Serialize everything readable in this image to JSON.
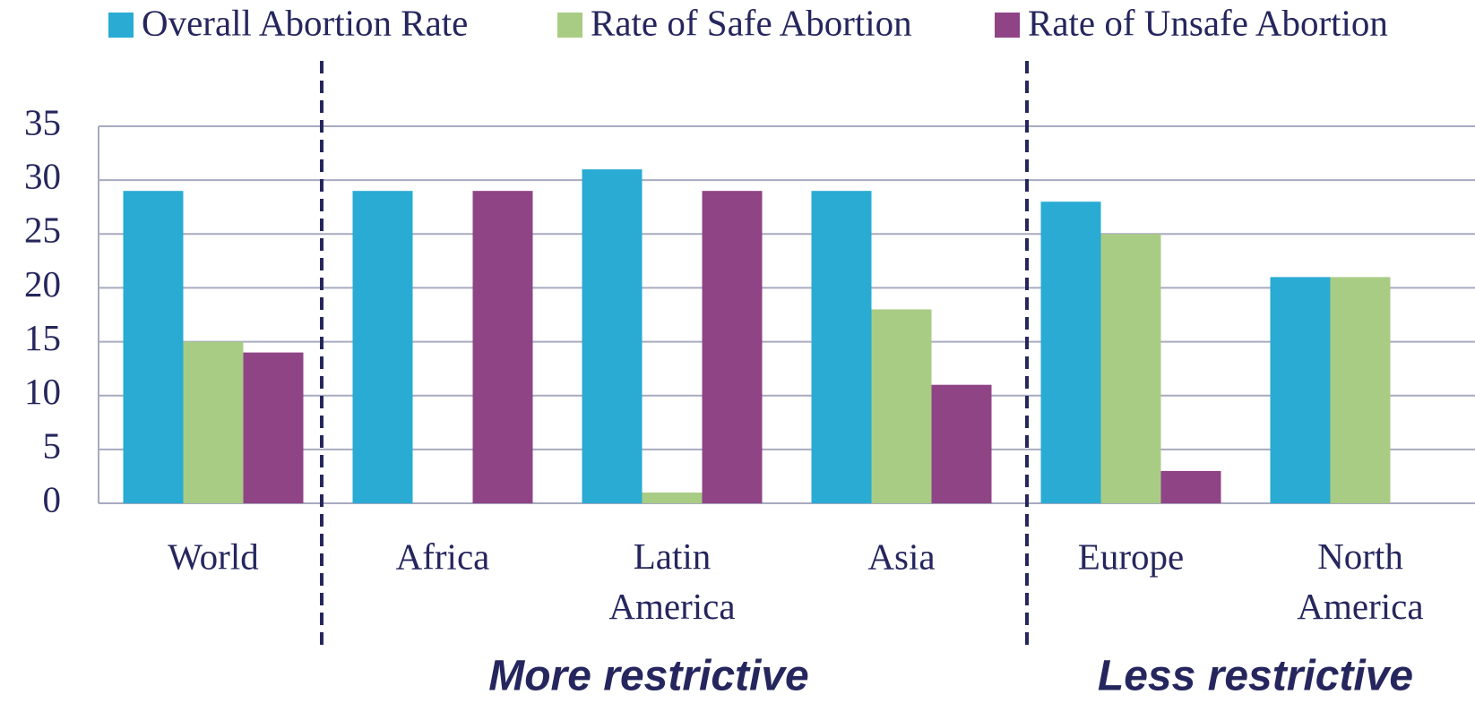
{
  "chart_data": {
    "type": "bar",
    "categories": [
      "World",
      "Africa",
      "Latin America",
      "Asia",
      "Europe",
      "North America"
    ],
    "series": [
      {
        "name": "Overall Abortion Rate",
        "color": "#29abd4",
        "values": [
          29,
          29,
          31,
          29,
          28,
          21
        ]
      },
      {
        "name": "Rate of Safe Abortion",
        "color": "#a9cc84",
        "values": [
          15,
          0,
          1,
          18,
          25,
          21
        ]
      },
      {
        "name": "Rate of Unsafe Abortion",
        "color": "#8f4486",
        "values": [
          14,
          29,
          29,
          11,
          3,
          0
        ]
      }
    ],
    "ylim": [
      0,
      35
    ],
    "yticks": [
      0,
      5,
      10,
      15,
      20,
      25,
      30,
      35
    ],
    "grid": true,
    "legend": "top",
    "annotations": [
      "More restrictive",
      "Less restrictive"
    ]
  }
}
